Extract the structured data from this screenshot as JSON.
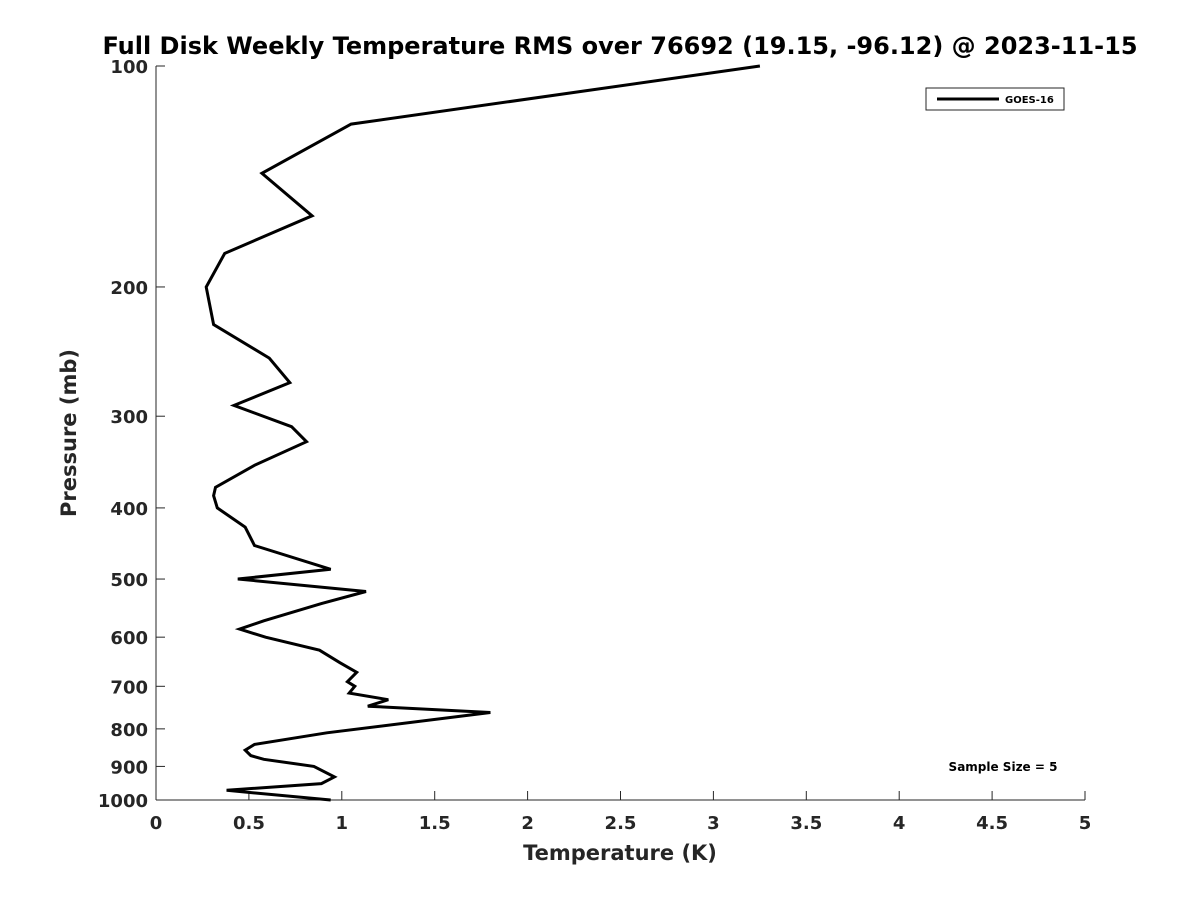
{
  "chart_data": {
    "type": "line",
    "title": "Full Disk Weekly Temperature RMS over 76692 (19.15, -96.12) @ 2023-11-15",
    "xlabel": "Temperature (K)",
    "ylabel": "Pressure (mb)",
    "xlim": [
      0,
      5
    ],
    "ylim": [
      100,
      1000
    ],
    "y_scale": "log",
    "y_reversed": true,
    "xticks": [
      0,
      0.5,
      1,
      1.5,
      2,
      2.5,
      3,
      3.5,
      4,
      4.5,
      5
    ],
    "xtick_labels": [
      "0",
      "0.5",
      "1",
      "1.5",
      "2",
      "2.5",
      "3",
      "3.5",
      "4",
      "4.5",
      "5"
    ],
    "yticks": [
      100,
      200,
      300,
      400,
      500,
      600,
      700,
      800,
      900,
      1000
    ],
    "ytick_labels": [
      "100",
      "200",
      "300",
      "400",
      "500",
      "600",
      "700",
      "800",
      "900",
      "1000"
    ],
    "grid": false,
    "legend_position": "top-right",
    "annotation": "Sample Size = 5",
    "series": [
      {
        "name": "GOES-16",
        "color": "#000000",
        "points": [
          [
            3.25,
            100
          ],
          [
            1.05,
            120
          ],
          [
            0.57,
            140
          ],
          [
            0.84,
            160
          ],
          [
            0.37,
            180
          ],
          [
            0.27,
            200
          ],
          [
            0.31,
            225
          ],
          [
            0.61,
            250
          ],
          [
            0.72,
            270
          ],
          [
            0.42,
            290
          ],
          [
            0.73,
            310
          ],
          [
            0.81,
            325
          ],
          [
            0.53,
            350
          ],
          [
            0.32,
            375
          ],
          [
            0.31,
            385
          ],
          [
            0.33,
            400
          ],
          [
            0.48,
            425
          ],
          [
            0.53,
            450
          ],
          [
            0.94,
            485
          ],
          [
            0.44,
            500
          ],
          [
            1.13,
            520
          ],
          [
            0.89,
            540
          ],
          [
            0.58,
            570
          ],
          [
            0.45,
            585
          ],
          [
            0.59,
            600
          ],
          [
            0.88,
            625
          ],
          [
            0.99,
            650
          ],
          [
            1.08,
            670
          ],
          [
            1.03,
            690
          ],
          [
            1.07,
            700
          ],
          [
            1.04,
            715
          ],
          [
            1.25,
            730
          ],
          [
            1.14,
            745
          ],
          [
            1.8,
            760
          ],
          [
            0.92,
            810
          ],
          [
            0.53,
            840
          ],
          [
            0.48,
            855
          ],
          [
            0.51,
            870
          ],
          [
            0.58,
            880
          ],
          [
            0.85,
            900
          ],
          [
            0.96,
            930
          ],
          [
            0.89,
            950
          ],
          [
            0.38,
            970
          ],
          [
            0.94,
            1000
          ]
        ]
      }
    ]
  }
}
